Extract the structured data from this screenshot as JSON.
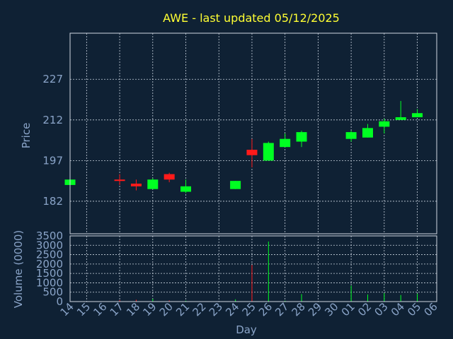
{
  "chart_data": {
    "title": "AWE - last updated 05/12/2025",
    "colors": {
      "up": "#00ff22",
      "down": "#ff1a1a",
      "background": "#0f2134",
      "title": "#ffff33",
      "text": "#8aa4c8"
    },
    "price_panel": {
      "type": "candlestick",
      "ylabel": "Price",
      "ylim": [
        170,
        244
      ],
      "yticks": [
        182,
        197,
        212,
        227
      ],
      "grid": true
    },
    "volume_panel": {
      "type": "bar",
      "ylabel": "Volume (0000)",
      "ylim": [
        0,
        3500
      ],
      "yticks": [
        0,
        500,
        1000,
        1500,
        2000,
        2500,
        3000,
        3500
      ],
      "grid": true
    },
    "xlabel": "Day",
    "x_ticks": [
      "14",
      "15",
      "16",
      "17",
      "18",
      "19",
      "20",
      "21",
      "22",
      "23",
      "24",
      "25",
      "26",
      "27",
      "28",
      "29",
      "30",
      "01",
      "02",
      "03",
      "04",
      "05",
      "06"
    ],
    "candles": [
      {
        "day": "14",
        "open": 188,
        "high": 190,
        "low": 186,
        "close": 190,
        "volume": 20
      },
      {
        "day": "17",
        "open": 190,
        "high": 192,
        "low": 188,
        "close": 189.5,
        "volume": 80
      },
      {
        "day": "18",
        "open": 188.5,
        "high": 190,
        "low": 186,
        "close": 187.5,
        "volume": 100
      },
      {
        "day": "19",
        "open": 186.5,
        "high": 190.5,
        "low": 186.5,
        "close": 190,
        "volume": 150
      },
      {
        "day": "20",
        "open": 192,
        "high": 192.5,
        "low": 189,
        "close": 190,
        "volume": 60
      },
      {
        "day": "21",
        "open": 185.5,
        "high": 190,
        "low": 185,
        "close": 187.5,
        "volume": 50
      },
      {
        "day": "24",
        "open": 186.5,
        "high": 189.5,
        "low": 186.5,
        "close": 189.5,
        "volume": 120
      },
      {
        "day": "25",
        "open": 201,
        "high": 205,
        "low": 194.5,
        "close": 199,
        "volume": 1950
      },
      {
        "day": "26",
        "open": 197,
        "high": 204,
        "low": 197,
        "close": 203.5,
        "volume": 3200
      },
      {
        "day": "27",
        "open": 202,
        "high": 207,
        "low": 202,
        "close": 205,
        "volume": 50
      },
      {
        "day": "28",
        "open": 204,
        "high": 208,
        "low": 202,
        "close": 207.5,
        "volume": 400
      },
      {
        "day": "01",
        "open": 205,
        "high": 208,
        "low": 204,
        "close": 207.5,
        "volume": 850
      },
      {
        "day": "02",
        "open": 205.5,
        "high": 210.5,
        "low": 205.5,
        "close": 209,
        "volume": 380
      },
      {
        "day": "03",
        "open": 209.5,
        "high": 212.5,
        "low": 207,
        "close": 211.5,
        "volume": 450
      },
      {
        "day": "04",
        "open": 212,
        "high": 219,
        "low": 212,
        "close": 213,
        "volume": 350
      },
      {
        "day": "05",
        "open": 213,
        "high": 216,
        "low": 213,
        "close": 214.5,
        "volume": 420
      }
    ]
  }
}
